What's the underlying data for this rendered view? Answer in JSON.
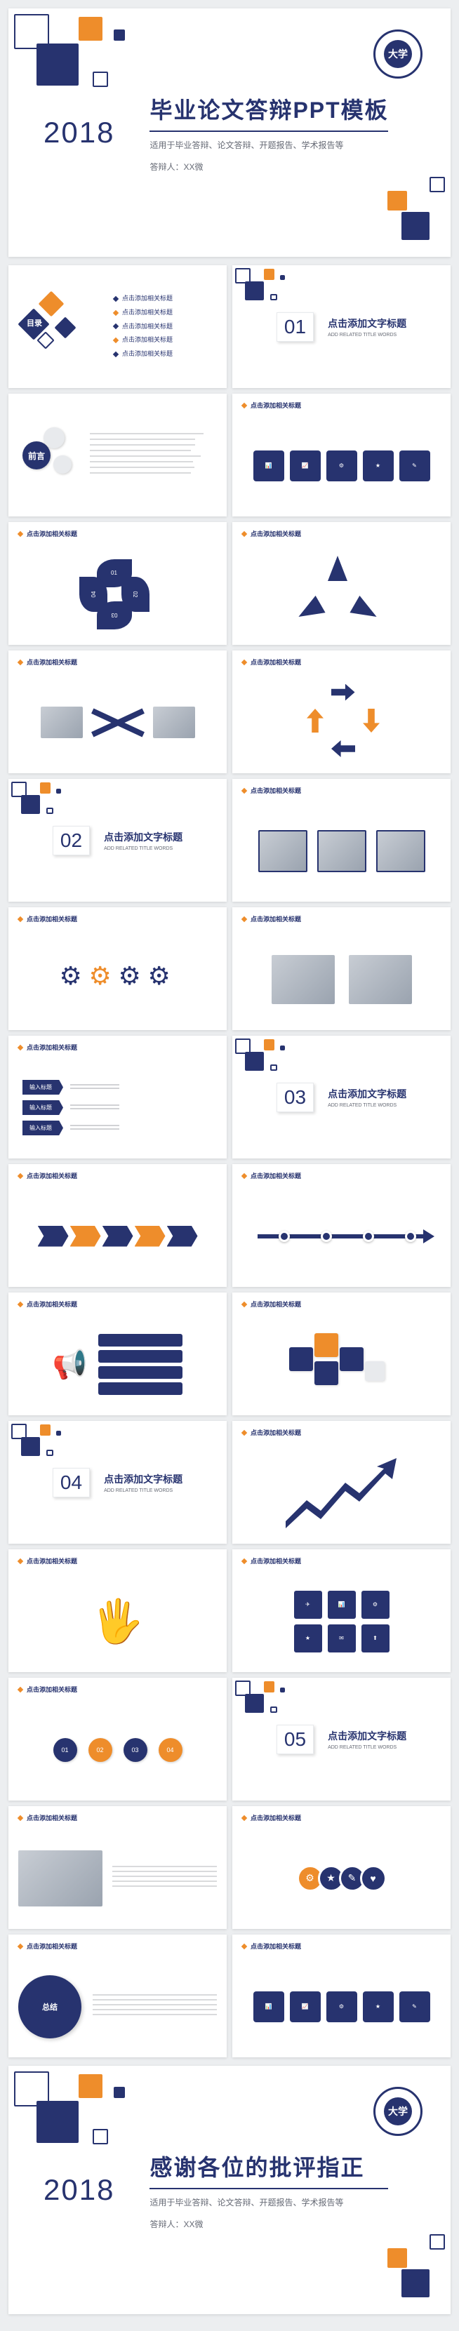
{
  "colors": {
    "navy": "#27336f",
    "orange": "#ee8d2b",
    "light_gray": "#e8eaed",
    "text_gray": "#666a75",
    "white": "#ffffff"
  },
  "hero": {
    "year": "2018",
    "title": "毕业论文答辩PPT模板",
    "subtitle": "适用于毕业答辩、论文答辩、开题报告、学术报告等",
    "author_label": "答辩人：XX微",
    "seal_outer": "UNIVERSITY · 1912",
    "seal_inner": "大学"
  },
  "toc": {
    "heading": "目录",
    "heading_en": "CONTENTS",
    "items": [
      "点击添加相关标题",
      "点击添加相关标题",
      "点击添加相关标题",
      "点击添加相关标题",
      "点击添加相关标题"
    ]
  },
  "sections": [
    {
      "num": "01",
      "label": "点击添加文字标题",
      "sub": "ADD RELATED TITLE WORDS"
    },
    {
      "num": "02",
      "label": "点击添加文字标题",
      "sub": "ADD RELATED TITLE WORDS"
    },
    {
      "num": "03",
      "label": "点击添加文字标题",
      "sub": "ADD RELATED TITLE WORDS"
    },
    {
      "num": "04",
      "label": "点击添加文字标题",
      "sub": "ADD RELATED TITLE WORDS"
    },
    {
      "num": "05",
      "label": "点击添加文字标题",
      "sub": "ADD RELATED TITLE WORDS"
    }
  ],
  "content_title": "点击添加相关标题",
  "preface": {
    "label": "前言"
  },
  "closing": {
    "year": "2018",
    "title": "感谢各位的批评指正",
    "subtitle": "适用于毕业答辩、论文答辩、开题报告、学术报告等",
    "author_label": "答辩人：XX微"
  },
  "tag_labels": [
    "输入标题",
    "输入标题",
    "输入标题"
  ],
  "step_labels": [
    "01",
    "02",
    "03",
    "04"
  ],
  "slide_types": [
    "hero",
    "toc",
    "section",
    "preface",
    "content",
    "content",
    "content",
    "content",
    "content",
    "section",
    "content",
    "content",
    "content",
    "content",
    "section",
    "content",
    "content",
    "content",
    "content",
    "section",
    "content",
    "content",
    "content",
    "content",
    "section",
    "content",
    "content",
    "content",
    "content",
    "closing"
  ]
}
